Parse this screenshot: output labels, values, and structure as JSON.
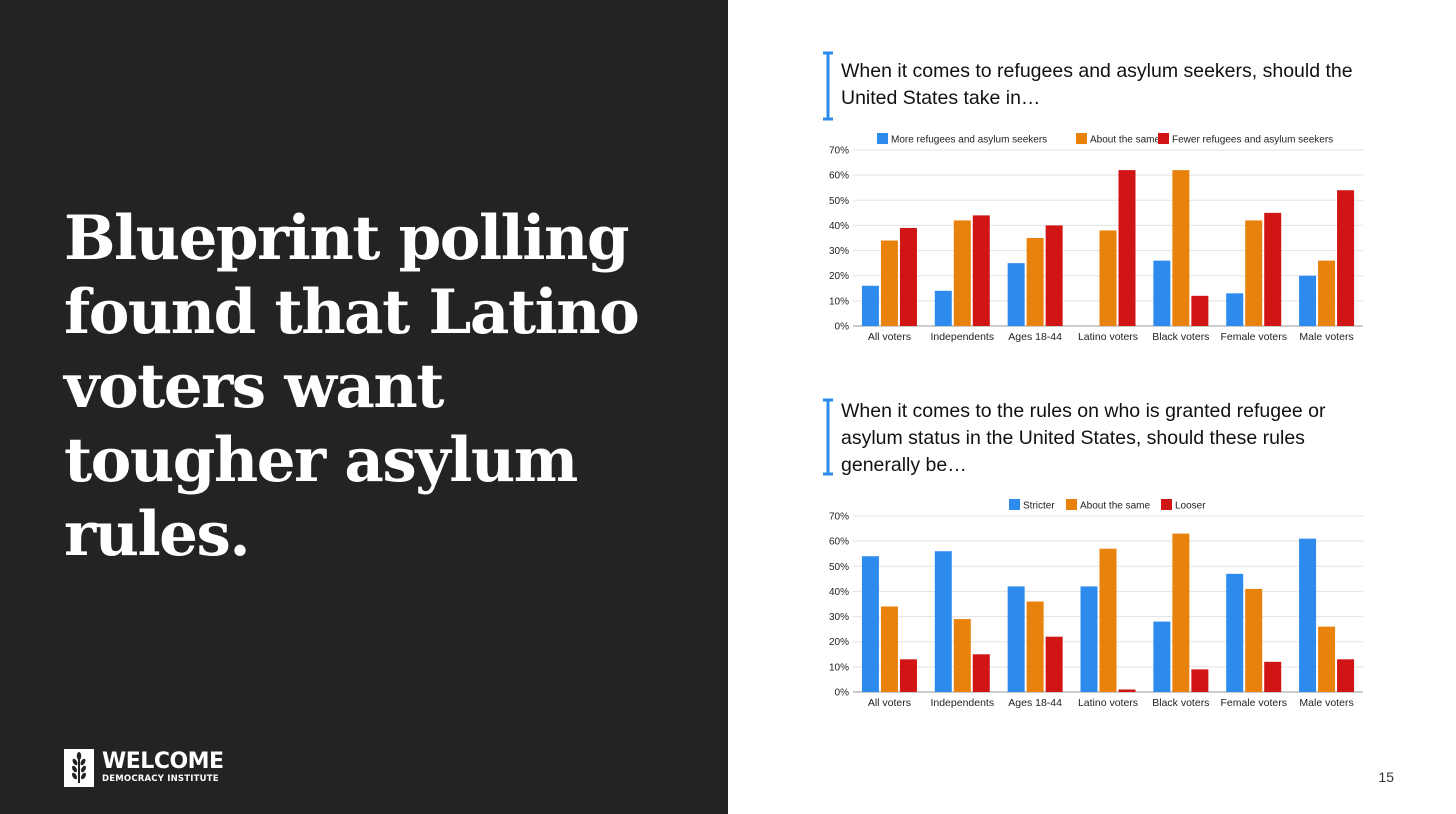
{
  "headline": "Blueprint polling found that Latino voters want tougher asylum rules.",
  "logo": {
    "name": "WELCOME",
    "subtitle": "DEMOCRACY INSTITUTE",
    "icon": "wheat-icon"
  },
  "page_number": "15",
  "colors": {
    "blue": "#2E8BEE",
    "orange": "#E8820C",
    "red": "#D11414",
    "dark_bg": "#232323",
    "bracket": "#2E8BEE"
  },
  "questions": [
    "When it comes to refugees and asylum seekers, should the United States take in…",
    "When it comes to the rules on who is granted refugee or asylum status in the United States, should these rules generally be…"
  ],
  "chart_data": [
    {
      "type": "bar",
      "title": "",
      "categories": [
        "All voters",
        "Independents",
        "Ages 18-44",
        "Latino voters",
        "Black voters",
        "Female voters",
        "Male voters"
      ],
      "series": [
        {
          "name": "More refugees and asylum seekers",
          "values": [
            16,
            14,
            25,
            0,
            26,
            13,
            20
          ]
        },
        {
          "name": "About the same",
          "values": [
            34,
            42,
            35,
            38,
            62,
            42,
            26
          ]
        },
        {
          "name": "Fewer refugees and asylum seekers",
          "values": [
            39,
            44,
            40,
            62,
            12,
            45,
            54
          ]
        }
      ],
      "yticks": [
        "0%",
        "10%",
        "20%",
        "30%",
        "40%",
        "50%",
        "60%",
        "70%"
      ],
      "ylim": [
        0,
        70
      ],
      "grid": true,
      "legend": "top"
    },
    {
      "type": "bar",
      "title": "",
      "categories": [
        "All voters",
        "Independents",
        "Ages 18-44",
        "Latino voters",
        "Black voters",
        "Female voters",
        "Male voters"
      ],
      "series": [
        {
          "name": "Stricter",
          "values": [
            54,
            56,
            42,
            42,
            28,
            47,
            61
          ]
        },
        {
          "name": "About the same",
          "values": [
            34,
            29,
            36,
            57,
            63,
            41,
            26
          ]
        },
        {
          "name": "Looser",
          "values": [
            13,
            15,
            22,
            1,
            9,
            12,
            13
          ]
        }
      ],
      "yticks": [
        "0%",
        "10%",
        "20%",
        "30%",
        "40%",
        "50%",
        "60%",
        "70%"
      ],
      "ylim": [
        0,
        70
      ],
      "grid": true,
      "legend": "top"
    }
  ]
}
